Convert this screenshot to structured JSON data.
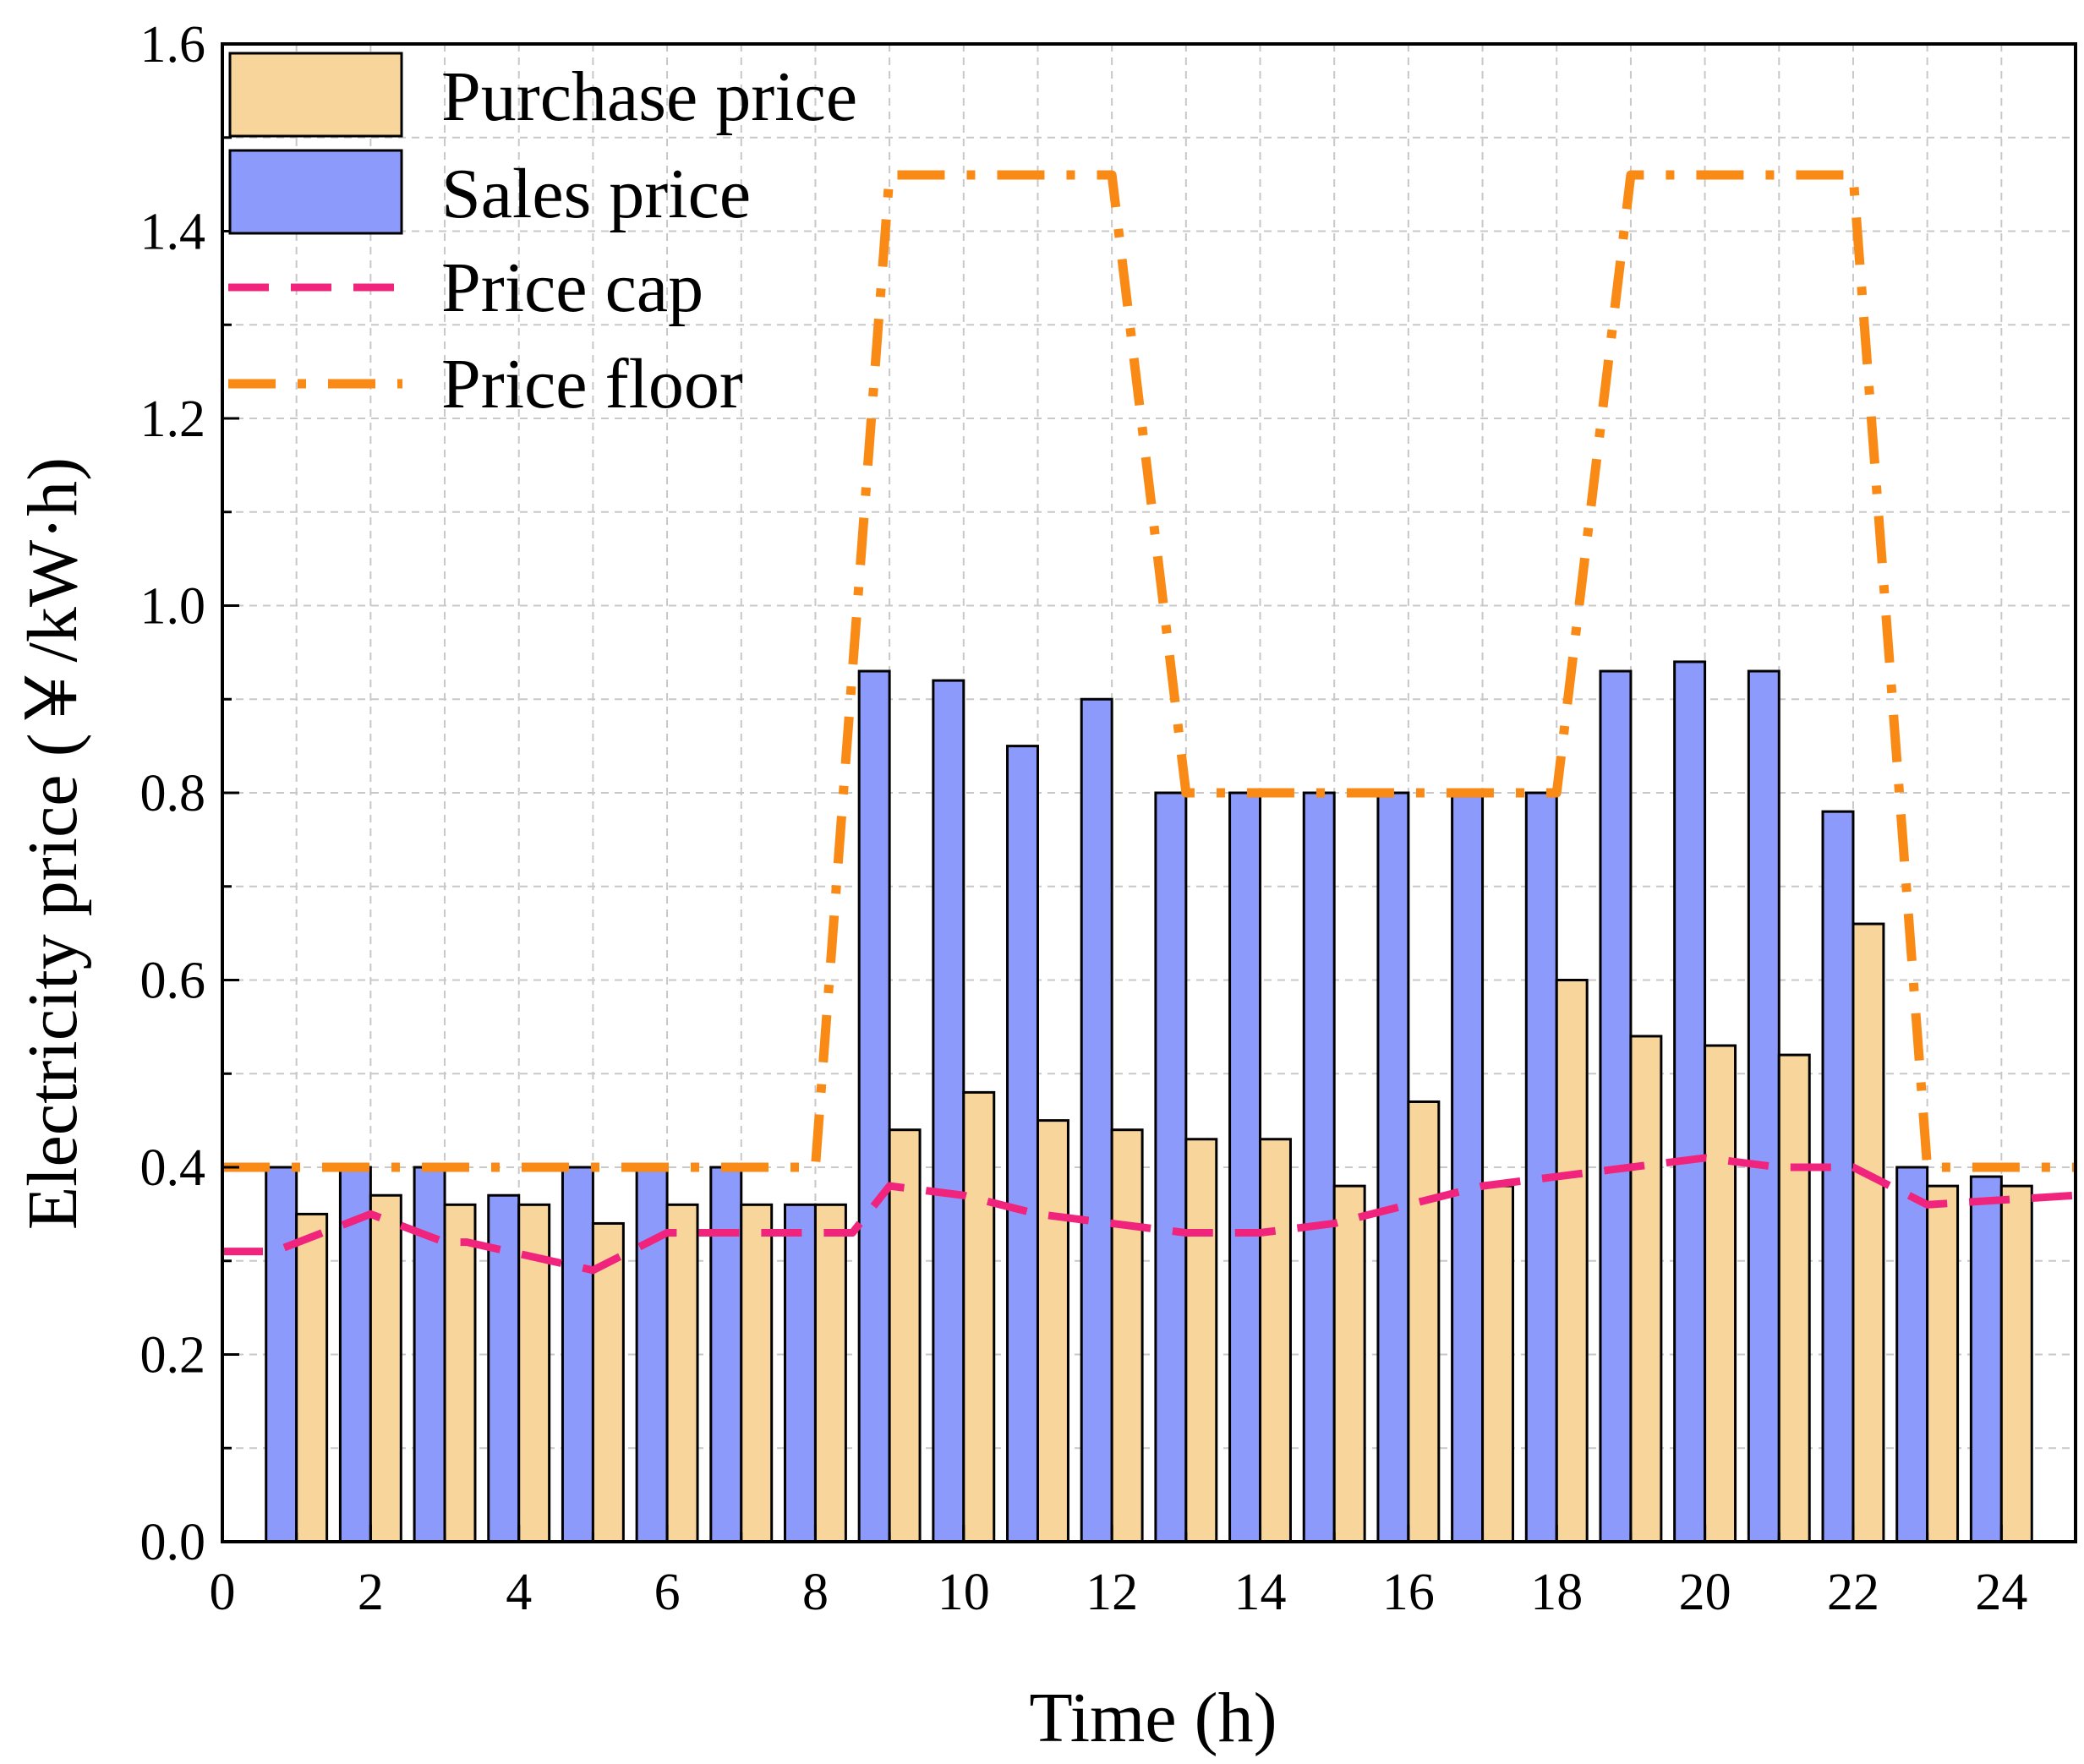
{
  "chart_data": {
    "type": "bar",
    "xlabel": "Time (h)",
    "ylabel": "Electricity price (￥/kW·h)",
    "xlim": [
      0,
      25
    ],
    "ylim": [
      0,
      1.6
    ],
    "xticks": [
      0,
      2,
      4,
      6,
      8,
      10,
      12,
      14,
      16,
      18,
      20,
      22,
      24
    ],
    "yticks": [
      0.0,
      0.2,
      0.4,
      0.6,
      0.8,
      1.0,
      1.2,
      1.4,
      1.6
    ],
    "ytick_labels": [
      "0.0",
      "0.2",
      "0.4",
      "0.6",
      "0.8",
      "1.0",
      "1.2",
      "1.4",
      "1.6"
    ],
    "grid": true,
    "legend_position": "top-left",
    "categories": [
      1,
      2,
      3,
      4,
      5,
      6,
      7,
      8,
      9,
      10,
      11,
      12,
      13,
      14,
      15,
      16,
      17,
      18,
      19,
      20,
      21,
      22,
      23,
      24
    ],
    "series": [
      {
        "name": "Purchase price",
        "kind": "bar",
        "color": "#F7D59B",
        "values": [
          0.35,
          0.37,
          0.36,
          0.36,
          0.34,
          0.36,
          0.36,
          0.36,
          0.44,
          0.48,
          0.45,
          0.44,
          0.43,
          0.43,
          0.38,
          0.47,
          0.38,
          0.6,
          0.54,
          0.53,
          0.52,
          0.66,
          0.38,
          0.38
        ]
      },
      {
        "name": "Sales price",
        "kind": "bar",
        "color": "#8C9BFB",
        "values": [
          0.4,
          0.4,
          0.4,
          0.37,
          0.4,
          0.4,
          0.4,
          0.36,
          0.93,
          0.92,
          0.85,
          0.9,
          0.8,
          0.8,
          0.8,
          0.8,
          0.8,
          0.8,
          0.93,
          0.94,
          0.93,
          0.78,
          0.4,
          0.39
        ]
      },
      {
        "name": "Price cap",
        "kind": "line",
        "style": "dashed",
        "color": "#F0247D",
        "x": [
          0,
          0.7,
          2,
          3,
          3.3,
          5,
          6,
          6.8,
          8,
          8.5,
          9,
          10,
          11,
          12,
          13,
          14,
          15,
          16,
          17,
          18,
          19,
          20,
          21,
          22,
          23,
          25
        ],
        "y": [
          0.31,
          0.31,
          0.35,
          0.32,
          0.32,
          0.29,
          0.33,
          0.33,
          0.33,
          0.33,
          0.38,
          0.37,
          0.35,
          0.34,
          0.33,
          0.33,
          0.34,
          0.36,
          0.38,
          0.39,
          0.4,
          0.41,
          0.4,
          0.4,
          0.36,
          0.37
        ]
      },
      {
        "name": "Price floor",
        "kind": "line",
        "style": "dashdot",
        "color": "#F98A15",
        "x": [
          0,
          8,
          9,
          12,
          13,
          18,
          19,
          22,
          23,
          25
        ],
        "y": [
          0.4,
          0.4,
          1.46,
          1.46,
          0.8,
          0.8,
          1.46,
          1.46,
          0.4,
          0.4
        ]
      }
    ]
  }
}
